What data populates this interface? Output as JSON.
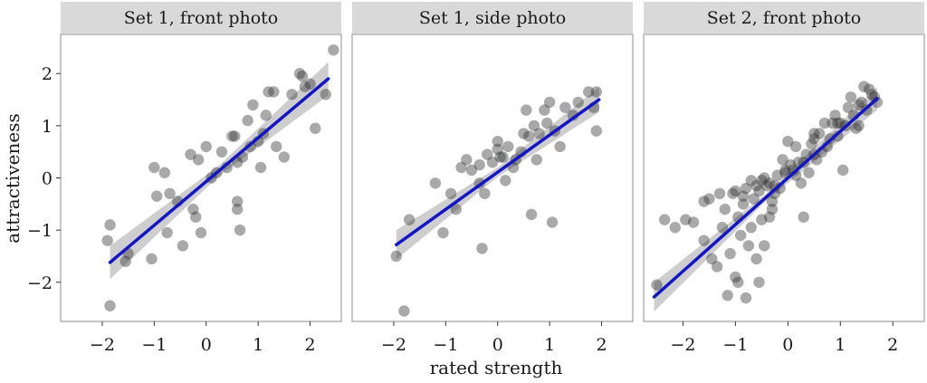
{
  "figure": {
    "xlabel": "rated strength",
    "ylabel": "attractiveness"
  },
  "style": {
    "strip_color": "#d9d9d9",
    "panel_border": "#b3b3b3",
    "point_color": "#333333",
    "line_color": "#1515c8",
    "band_color": "#bdbdbd"
  },
  "chart_data": [
    {
      "type": "scatter",
      "title": "Set 1, front photo",
      "xlim": [
        -2.8,
        2.6
      ],
      "ylim": [
        -2.75,
        2.75
      ],
      "xticks": [
        -2,
        -1,
        0,
        1,
        2
      ],
      "xtick_labels": [
        "−2",
        "−1",
        "0",
        "1",
        "2"
      ],
      "yticks": [
        -2,
        -1,
        0,
        1,
        2
      ],
      "ytick_labels": [
        "−2",
        "−1",
        "0",
        "1",
        "2"
      ],
      "fit": {
        "x": [
          -1.85,
          2.35
        ],
        "y": [
          -1.62,
          1.9
        ]
      },
      "band_width": [
        0.32,
        0.1,
        0.32
      ],
      "points": [
        [
          -1.85,
          -0.9
        ],
        [
          -1.9,
          -1.2
        ],
        [
          -1.85,
          -2.45
        ],
        [
          -1.5,
          -1.45
        ],
        [
          -1.55,
          -1.6
        ],
        [
          -1.05,
          -1.55
        ],
        [
          -1.0,
          0.2
        ],
        [
          -0.8,
          0.1
        ],
        [
          -0.95,
          -0.35
        ],
        [
          -0.75,
          -1.05
        ],
        [
          -0.7,
          -0.3
        ],
        [
          -0.55,
          -0.45
        ],
        [
          -0.45,
          -1.3
        ],
        [
          -0.3,
          0.45
        ],
        [
          -0.25,
          -0.6
        ],
        [
          -0.2,
          -0.75
        ],
        [
          -0.15,
          0.35
        ],
        [
          -0.1,
          -1.05
        ],
        [
          0.0,
          0.6
        ],
        [
          0.1,
          0.0
        ],
        [
          0.2,
          0.1
        ],
        [
          0.3,
          0.5
        ],
        [
          0.4,
          0.2
        ],
        [
          0.5,
          0.8
        ],
        [
          0.55,
          0.8
        ],
        [
          0.6,
          0.3
        ],
        [
          0.6,
          -0.45
        ],
        [
          0.6,
          -0.6
        ],
        [
          0.65,
          -1.0
        ],
        [
          0.7,
          0.4
        ],
        [
          0.8,
          1.1
        ],
        [
          0.85,
          0.6
        ],
        [
          0.9,
          1.4
        ],
        [
          1.0,
          0.7
        ],
        [
          1.05,
          0.2
        ],
        [
          1.1,
          0.85
        ],
        [
          1.15,
          1.2
        ],
        [
          1.2,
          1.65
        ],
        [
          1.3,
          1.65
        ],
        [
          1.35,
          0.6
        ],
        [
          1.5,
          0.4
        ],
        [
          1.65,
          1.6
        ],
        [
          1.8,
          2.0
        ],
        [
          1.85,
          1.95
        ],
        [
          1.9,
          1.75
        ],
        [
          2.0,
          1.8
        ],
        [
          2.1,
          0.95
        ],
        [
          2.3,
          1.6
        ],
        [
          2.45,
          2.45
        ]
      ]
    },
    {
      "type": "scatter",
      "title": "Set 1, side photo",
      "xlim": [
        -2.8,
        2.6
      ],
      "ylim": [
        -2.75,
        2.75
      ],
      "xticks": [
        -2,
        -1,
        0,
        1,
        2
      ],
      "xtick_labels": [
        "−2",
        "−1",
        "0",
        "1",
        "2"
      ],
      "yticks": [
        -2,
        -1,
        0,
        1,
        2
      ],
      "ytick_labels": [
        "−2",
        "−1",
        "0",
        "1",
        "2"
      ],
      "fit": {
        "x": [
          -1.95,
          1.95
        ],
        "y": [
          -1.28,
          1.5
        ]
      },
      "band_width": [
        0.28,
        0.09,
        0.24
      ],
      "points": [
        [
          -1.95,
          -1.5
        ],
        [
          -1.8,
          -2.55
        ],
        [
          -1.7,
          -0.8
        ],
        [
          -1.2,
          -0.1
        ],
        [
          -1.05,
          -1.05
        ],
        [
          -0.9,
          -0.3
        ],
        [
          -0.8,
          -0.6
        ],
        [
          -0.7,
          0.2
        ],
        [
          -0.6,
          0.35
        ],
        [
          -0.5,
          0.15
        ],
        [
          -0.35,
          -0.1
        ],
        [
          -0.3,
          -1.35
        ],
        [
          -0.25,
          -0.3
        ],
        [
          -0.2,
          0.45
        ],
        [
          -0.1,
          0.3
        ],
        [
          0.0,
          0.7
        ],
        [
          0.05,
          0.4
        ],
        [
          0.1,
          0.4
        ],
        [
          0.15,
          -0.05
        ],
        [
          0.2,
          0.6
        ],
        [
          0.3,
          0.2
        ],
        [
          0.35,
          0.35
        ],
        [
          0.45,
          0.5
        ],
        [
          0.5,
          0.85
        ],
        [
          0.55,
          1.3
        ],
        [
          0.6,
          0.8
        ],
        [
          0.65,
          -0.7
        ],
        [
          0.7,
          1.0
        ],
        [
          0.75,
          0.35
        ],
        [
          0.8,
          0.85
        ],
        [
          0.9,
          1.3
        ],
        [
          0.95,
          1.05
        ],
        [
          1.0,
          1.45
        ],
        [
          1.05,
          -0.85
        ],
        [
          1.1,
          0.9
        ],
        [
          1.2,
          0.6
        ],
        [
          1.3,
          1.35
        ],
        [
          1.45,
          1.2
        ],
        [
          1.55,
          1.45
        ],
        [
          1.75,
          1.65
        ],
        [
          1.85,
          1.35
        ],
        [
          1.9,
          1.65
        ],
        [
          1.9,
          0.9
        ],
        [
          0.0,
          0.55
        ],
        [
          -0.35,
          0.25
        ]
      ]
    },
    {
      "type": "scatter",
      "title": "Set 2, front photo",
      "xlim": [
        -2.75,
        2.6
      ],
      "ylim": [
        -2.75,
        2.75
      ],
      "xticks": [
        -2,
        -1,
        0,
        1,
        2
      ],
      "xtick_labels": [
        "−2",
        "−1",
        "0",
        "1",
        "2"
      ],
      "yticks": [
        -2,
        -1,
        0,
        1,
        2
      ],
      "ytick_labels": [
        "−2",
        "−1",
        "0",
        "1",
        "2"
      ],
      "fit": {
        "x": [
          -2.55,
          1.7
        ],
        "y": [
          -2.28,
          1.52
        ]
      },
      "band_width": [
        0.28,
        0.07,
        0.22
      ],
      "points": [
        [
          -2.5,
          -2.05
        ],
        [
          -2.15,
          -0.95
        ],
        [
          -1.95,
          -0.8
        ],
        [
          -1.8,
          -0.85
        ],
        [
          -1.6,
          -1.2
        ],
        [
          -1.5,
          -0.4
        ],
        [
          -1.45,
          -1.55
        ],
        [
          -1.35,
          -1.7
        ],
        [
          -1.3,
          -0.3
        ],
        [
          -1.25,
          -0.95
        ],
        [
          -1.2,
          -0.6
        ],
        [
          -1.15,
          -2.25
        ],
        [
          -1.1,
          -1.45
        ],
        [
          -1.05,
          -0.3
        ],
        [
          -1.0,
          -0.25
        ],
        [
          -0.95,
          -0.75
        ],
        [
          -0.95,
          -2.0
        ],
        [
          -0.9,
          -1.1
        ],
        [
          -0.85,
          -0.35
        ],
        [
          -0.8,
          -0.2
        ],
        [
          -0.8,
          -2.3
        ],
        [
          -0.75,
          -1.3
        ],
        [
          -0.7,
          -0.05
        ],
        [
          -0.65,
          -0.4
        ],
        [
          -0.6,
          -0.15
        ],
        [
          -0.6,
          -1.55
        ],
        [
          -0.55,
          -0.25
        ],
        [
          -0.5,
          -0.05
        ],
        [
          -0.5,
          -0.8
        ],
        [
          -0.45,
          -1.3
        ],
        [
          -0.4,
          -0.15
        ],
        [
          -0.35,
          -0.1
        ],
        [
          -0.3,
          -0.45
        ],
        [
          -0.3,
          -0.6
        ],
        [
          -0.25,
          -0.3
        ],
        [
          -0.2,
          0.05
        ],
        [
          -0.15,
          -0.2
        ],
        [
          -0.1,
          0.35
        ],
        [
          -0.05,
          0.1
        ],
        [
          0.0,
          0.7
        ],
        [
          0.05,
          0.25
        ],
        [
          0.1,
          0.15
        ],
        [
          0.15,
          0.6
        ],
        [
          0.2,
          0.3
        ],
        [
          0.25,
          -0.1
        ],
        [
          0.3,
          0.3
        ],
        [
          0.35,
          0.45
        ],
        [
          0.4,
          0.1
        ],
        [
          0.45,
          0.65
        ],
        [
          0.5,
          0.75
        ],
        [
          0.55,
          0.35
        ],
        [
          0.6,
          0.85
        ],
        [
          0.65,
          0.5
        ],
        [
          0.7,
          1.05
        ],
        [
          0.75,
          0.6
        ],
        [
          0.8,
          0.75
        ],
        [
          0.85,
          1.05
        ],
        [
          0.9,
          1.2
        ],
        [
          0.95,
          0.8
        ],
        [
          1.0,
          1.05
        ],
        [
          1.05,
          0.15
        ],
        [
          1.1,
          1.0
        ],
        [
          1.15,
          1.35
        ],
        [
          1.2,
          1.55
        ],
        [
          1.25,
          1.2
        ],
        [
          1.3,
          0.95
        ],
        [
          1.35,
          1.4
        ],
        [
          1.4,
          1.45
        ],
        [
          1.45,
          1.75
        ],
        [
          1.5,
          1.3
        ],
        [
          1.55,
          1.7
        ],
        [
          1.6,
          1.6
        ],
        [
          1.65,
          1.55
        ],
        [
          1.7,
          1.45
        ],
        [
          -2.35,
          -0.8
        ],
        [
          -1.0,
          -1.9
        ],
        [
          -0.7,
          -0.95
        ],
        [
          -0.55,
          -2.0
        ],
        [
          -0.35,
          -0.75
        ],
        [
          0.3,
          -0.75
        ],
        [
          0.5,
          0.85
        ],
        [
          0.95,
          1.05
        ],
        [
          1.35,
          1.0
        ],
        [
          -0.25,
          -0.15
        ],
        [
          -0.05,
          0.15
        ],
        [
          0.15,
          0.05
        ],
        [
          0.5,
          0.45
        ],
        [
          -0.45,
          0.0
        ],
        [
          -0.85,
          -0.5
        ],
        [
          -1.6,
          -0.45
        ]
      ]
    }
  ]
}
